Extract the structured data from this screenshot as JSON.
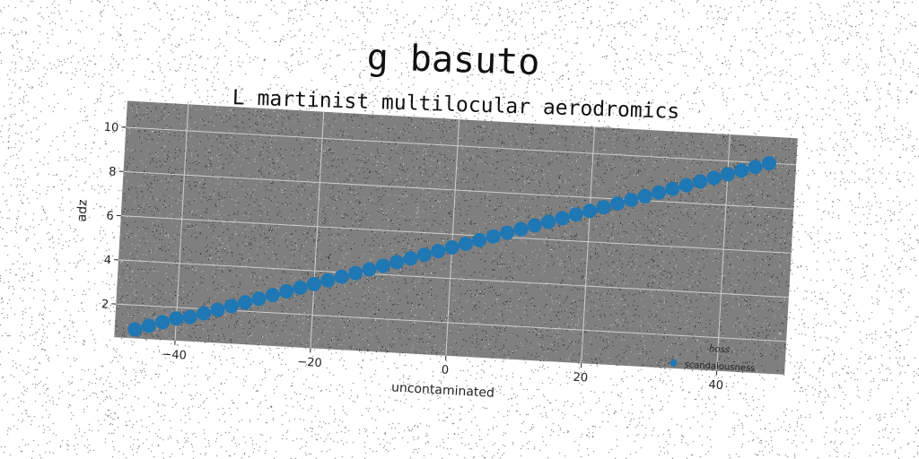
{
  "chart_data": {
    "type": "scatter",
    "title": "g basuto",
    "subtitle": "L martinist multilocular aerodromics",
    "xlabel": "uncontaminated",
    "ylabel": "adz",
    "xlim": [
      -49,
      50
    ],
    "ylim": [
      0.5,
      11.2
    ],
    "xticks": [
      -40,
      -20,
      0,
      20,
      40
    ],
    "yticks": [
      2,
      4,
      6,
      8,
      10
    ],
    "xtick_labels": [
      "−40",
      "−20",
      "0",
      "20",
      "40"
    ],
    "ytick_labels": [
      "2",
      "4",
      "6",
      "8",
      "10"
    ],
    "grid": true,
    "legend": {
      "title": "hoss",
      "placement": "lower-right",
      "entries": [
        "scandalousness"
      ]
    },
    "series": [
      {
        "name": "scandalousness",
        "color": "#1f77b4",
        "x": [
          -46,
          -44,
          -42,
          -40,
          -38,
          -36,
          -34,
          -32,
          -30,
          -28,
          -26,
          -24,
          -22,
          -20,
          -18,
          -16,
          -14,
          -12,
          -10,
          -8,
          -6,
          -4,
          -2,
          0,
          2,
          4,
          6,
          8,
          10,
          12,
          14,
          16,
          18,
          20,
          22,
          24,
          26,
          28,
          30,
          32,
          34,
          36,
          38,
          40,
          42,
          44,
          46
        ],
        "y": [
          0.9,
          1.1,
          1.3,
          1.5,
          1.6,
          1.8,
          2.0,
          2.2,
          2.4,
          2.6,
          2.8,
          3.0,
          3.2,
          3.4,
          3.6,
          3.8,
          4.0,
          4.2,
          4.4,
          4.6,
          4.8,
          5.0,
          5.2,
          5.4,
          5.6,
          5.8,
          6.0,
          6.2,
          6.4,
          6.6,
          6.8,
          7.0,
          7.2,
          7.4,
          7.6,
          7.8,
          8.0,
          8.2,
          8.4,
          8.6,
          8.8,
          9.0,
          9.2,
          9.4,
          9.6,
          9.8,
          10.0
        ]
      }
    ]
  },
  "colors": {
    "plot_background": "#7f7f7f",
    "grid": "#cfcfcf",
    "marker": "#1f77b4"
  }
}
